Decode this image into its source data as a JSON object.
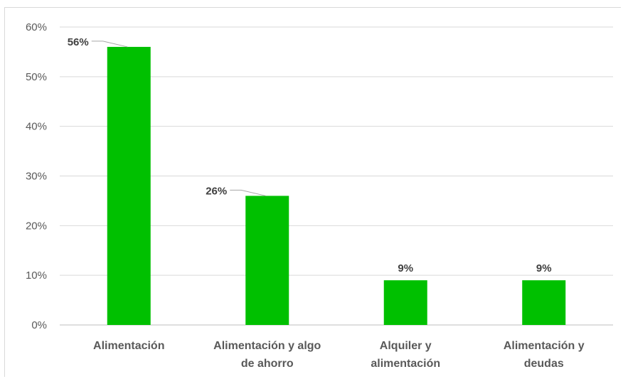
{
  "chart_data": {
    "type": "bar",
    "categories": [
      [
        "Alimentación"
      ],
      [
        "Alimentación y algo",
        "de ahorro"
      ],
      [
        "Alquiler y",
        "alimentación"
      ],
      [
        "Alimentación y",
        "deudas"
      ]
    ],
    "values": [
      56,
      26,
      9,
      9
    ],
    "data_labels": [
      "56%",
      "26%",
      "9%",
      "9%"
    ],
    "y_ticks": [
      0,
      10,
      20,
      30,
      40,
      50,
      60
    ],
    "y_tick_labels": [
      "0%",
      "10%",
      "20%",
      "30%",
      "40%",
      "50%",
      "60%"
    ],
    "ylim": [
      0,
      60
    ],
    "grid": true,
    "legend": "none",
    "colors": {
      "bar": "#00c000",
      "grid": "#d9d9d9",
      "axis": "#bfbfbf",
      "text": "#595959",
      "label": "#404040",
      "leader": "#a6a6a6"
    }
  }
}
